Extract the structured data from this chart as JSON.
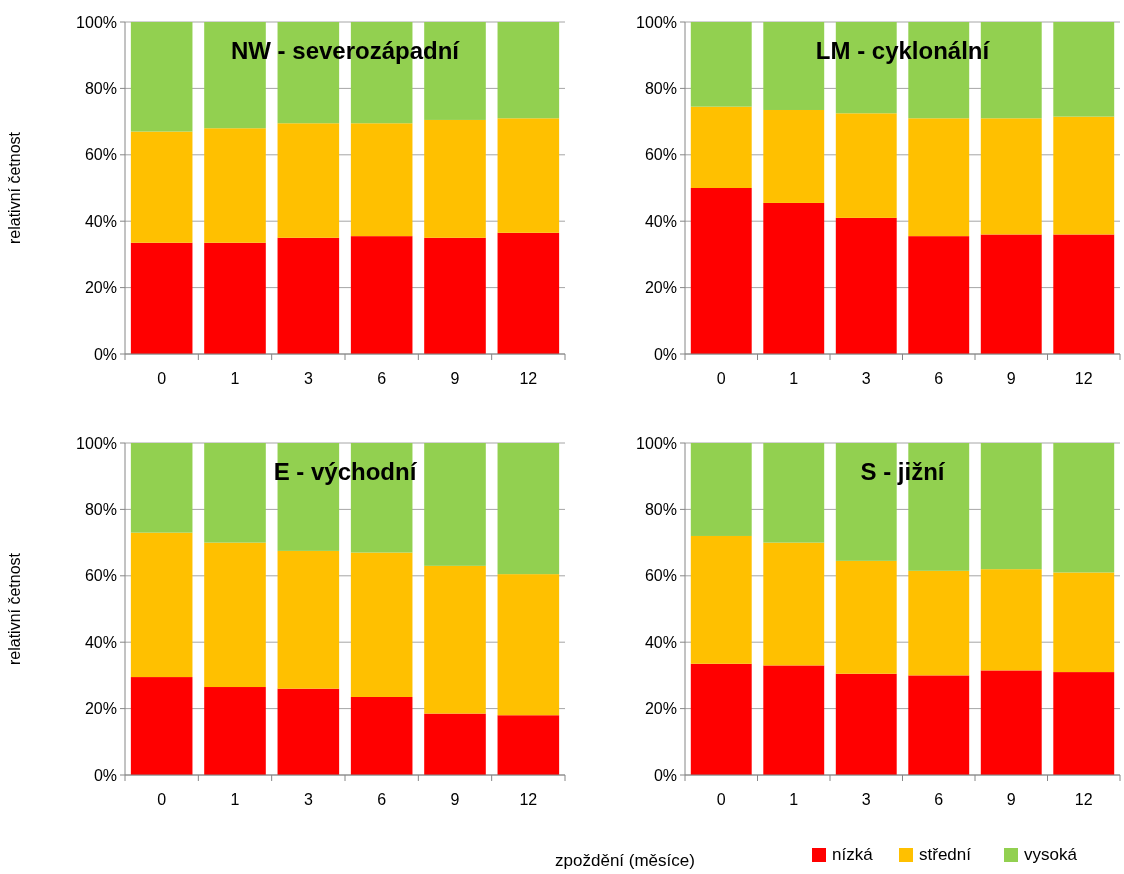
{
  "chart_data": [
    {
      "type": "bar",
      "stacked": true,
      "title": "NW - severozápadní",
      "ylabel": "relativní četnost",
      "categories": [
        "0",
        "1",
        "3",
        "6",
        "9",
        "12"
      ],
      "ylim": [
        0,
        100
      ],
      "yticks": [
        {
          "value": 0,
          "label": "0%"
        },
        {
          "value": 20,
          "label": "20%"
        },
        {
          "value": 40,
          "label": "40%"
        },
        {
          "value": 60,
          "label": "60%"
        },
        {
          "value": 80,
          "label": "80%"
        },
        {
          "value": 100,
          "label": "100%"
        }
      ],
      "grid": "y",
      "series": [
        {
          "color": "#ff0000",
          "values": [
            33.5,
            33.5,
            35,
            35.5,
            35,
            36.5
          ]
        },
        {
          "color": "#ffc000",
          "values": [
            33.5,
            34.5,
            34.5,
            34,
            35.5,
            34.5
          ]
        },
        {
          "color": "#92d050",
          "values": [
            33,
            32,
            30.5,
            30.5,
            29.5,
            29
          ]
        }
      ]
    },
    {
      "type": "bar",
      "stacked": true,
      "title": "LM - cyklonální",
      "categories": [
        "0",
        "1",
        "3",
        "6",
        "9",
        "12"
      ],
      "ylim": [
        0,
        100
      ],
      "yticks": [
        {
          "value": 0,
          "label": "0%"
        },
        {
          "value": 20,
          "label": "20%"
        },
        {
          "value": 40,
          "label": "40%"
        },
        {
          "value": 60,
          "label": "60%"
        },
        {
          "value": 80,
          "label": "80%"
        },
        {
          "value": 100,
          "label": "100%"
        }
      ],
      "grid": "y",
      "series": [
        {
          "color": "#ff0000",
          "values": [
            50,
            45.5,
            41,
            35.5,
            36,
            36
          ]
        },
        {
          "color": "#ffc000",
          "values": [
            24.5,
            28,
            31.5,
            35.5,
            35,
            35.5
          ]
        },
        {
          "color": "#92d050",
          "values": [
            25.5,
            26.5,
            27.5,
            29,
            29,
            28.5
          ]
        }
      ]
    },
    {
      "type": "bar",
      "stacked": true,
      "title": "E - východní",
      "ylabel": "relativní četnost",
      "categories": [
        "0",
        "1",
        "3",
        "6",
        "9",
        "12"
      ],
      "ylim": [
        0,
        100
      ],
      "yticks": [
        {
          "value": 0,
          "label": "0%"
        },
        {
          "value": 20,
          "label": "20%"
        },
        {
          "value": 40,
          "label": "40%"
        },
        {
          "value": 60,
          "label": "60%"
        },
        {
          "value": 80,
          "label": "80%"
        },
        {
          "value": 100,
          "label": "100%"
        }
      ],
      "grid": "y",
      "series": [
        {
          "color": "#ff0000",
          "values": [
            29.5,
            26.5,
            26,
            23.5,
            18.5,
            18
          ]
        },
        {
          "color": "#ffc000",
          "values": [
            43.5,
            43.5,
            41.5,
            43.5,
            44.5,
            42.5
          ]
        },
        {
          "color": "#92d050",
          "values": [
            27,
            30,
            32.5,
            33,
            37,
            39.5
          ]
        }
      ]
    },
    {
      "type": "bar",
      "stacked": true,
      "title": "S - jižní",
      "xlabel": "zpoždění (měsíce)",
      "categories": [
        "0",
        "1",
        "3",
        "6",
        "9",
        "12"
      ],
      "ylim": [
        0,
        100
      ],
      "yticks": [
        {
          "value": 0,
          "label": "0%"
        },
        {
          "value": 20,
          "label": "20%"
        },
        {
          "value": 40,
          "label": "40%"
        },
        {
          "value": 60,
          "label": "60%"
        },
        {
          "value": 80,
          "label": "80%"
        },
        {
          "value": 100,
          "label": "100%"
        }
      ],
      "grid": "y",
      "legend": "bottom",
      "series": [
        {
          "name": "nízká",
          "color": "#ff0000",
          "values": [
            33.5,
            33,
            30.5,
            30,
            31.5,
            31
          ]
        },
        {
          "name": "střední",
          "color": "#ffc000",
          "values": [
            38.5,
            37,
            34,
            31.5,
            30.5,
            30
          ]
        },
        {
          "name": "vysoká",
          "color": "#92d050",
          "values": [
            28,
            30,
            35.5,
            38.5,
            38,
            39
          ]
        }
      ]
    }
  ]
}
